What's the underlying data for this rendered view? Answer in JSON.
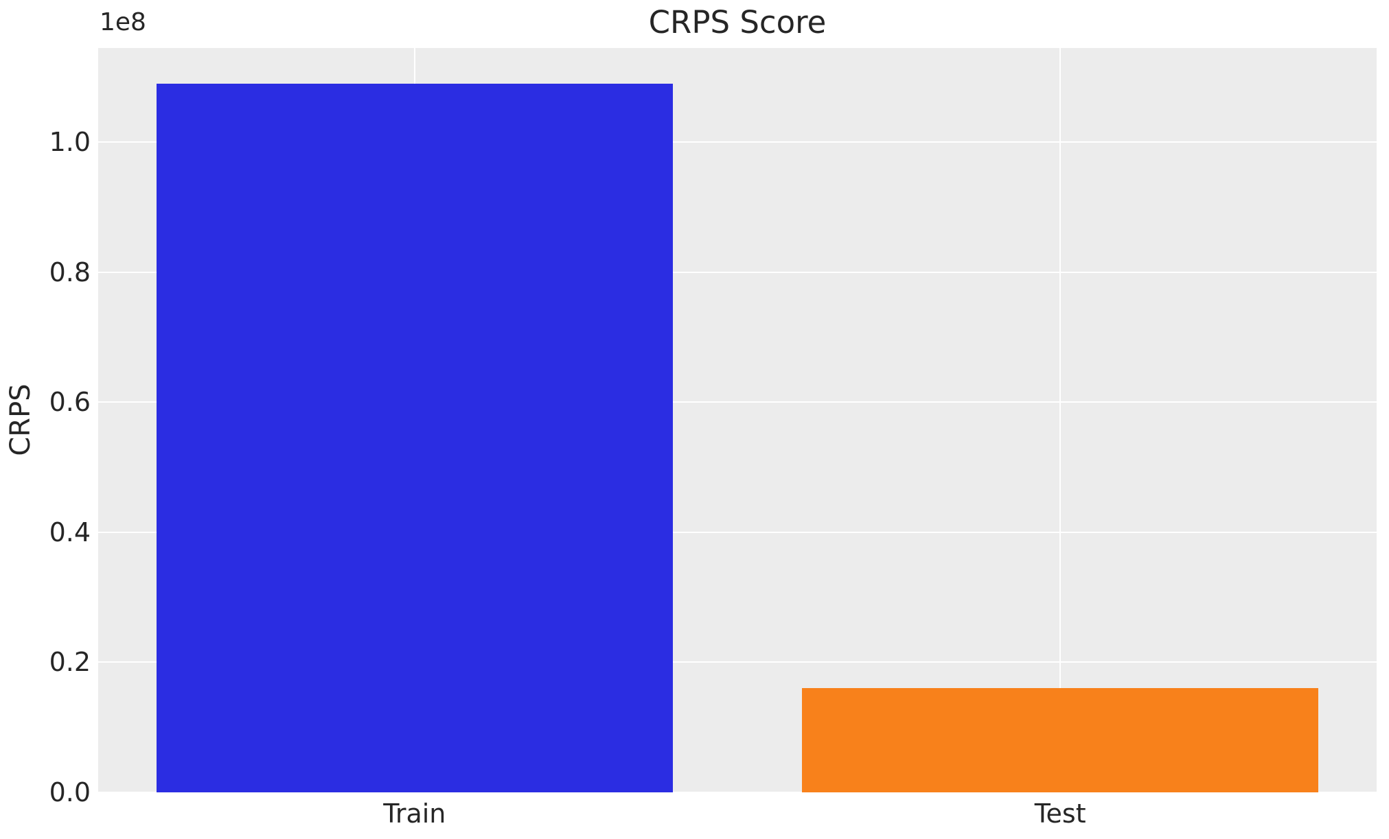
{
  "figure": {
    "title": "CRPS Score"
  },
  "chart_data": {
    "type": "bar",
    "title": "CRPS Score",
    "xlabel": "",
    "ylabel": "CRPS",
    "categories": [
      "Train",
      "Test"
    ],
    "values": [
      109000000,
      16000000
    ],
    "bar_colors": [
      "#2b2de2",
      "#f8811b"
    ],
    "ylim": [
      0,
      114450000
    ],
    "yticks": [
      0,
      20000000,
      40000000,
      60000000,
      80000000,
      100000000
    ],
    "ytick_labels": [
      "0.0",
      "0.2",
      "0.4",
      "0.6",
      "0.8",
      "1.0"
    ],
    "offset_text": "1e8",
    "bar_width_fraction": 0.8,
    "x_margin_fraction": 0.05,
    "grid": true,
    "legend": false,
    "plot_bg_color": "#ececec",
    "grid_color": "#ffffff",
    "text_color": "#262626"
  }
}
